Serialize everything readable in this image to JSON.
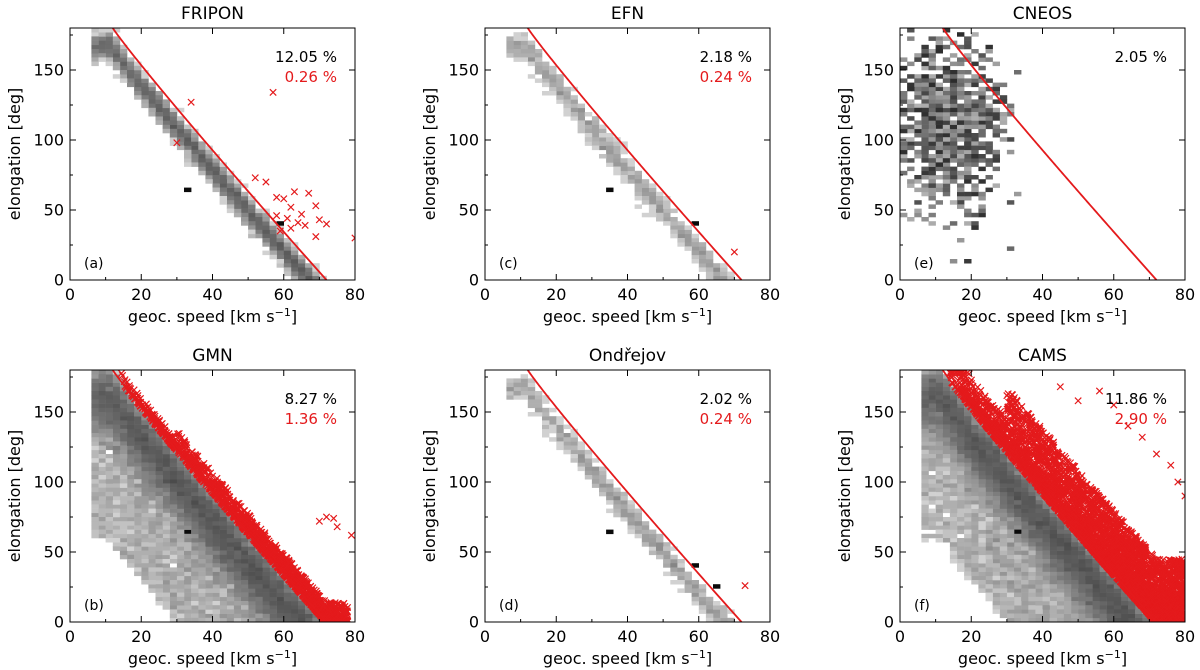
{
  "chart_data": [
    {
      "type": "heatmap",
      "title": "FRIPON",
      "panel_label": "(a)",
      "xlabel": "geoc. speed [km s",
      "xlabel_exp": "−1",
      "xlabel_close": "]",
      "ylabel": "elongation [deg]",
      "xlim": [
        0,
        80
      ],
      "ylim": [
        0,
        180
      ],
      "xticks": [
        0,
        20,
        40,
        60,
        80
      ],
      "yticks": [
        0,
        50,
        100,
        150
      ],
      "percent_total": "12.05 %",
      "percent_outside": "0.26 %",
      "density_profile": {
        "kind": "ridge",
        "spread": "narrow",
        "density": "medium"
      },
      "hotspots": [
        {
          "x": 33,
          "y": 63
        },
        {
          "x": 59,
          "y": 40
        }
      ],
      "outliers": [
        [
          30,
          98
        ],
        [
          34,
          127
        ],
        [
          57,
          134
        ],
        [
          52,
          73
        ],
        [
          55,
          70
        ],
        [
          58,
          59
        ],
        [
          60,
          58
        ],
        [
          62,
          52
        ],
        [
          63,
          63
        ],
        [
          65,
          47
        ],
        [
          67,
          62
        ],
        [
          69,
          53
        ],
        [
          70,
          43
        ],
        [
          72,
          40
        ],
        [
          58,
          46
        ],
        [
          61,
          44
        ],
        [
          64,
          41
        ],
        [
          66,
          39
        ],
        [
          62,
          37
        ],
        [
          59,
          35
        ],
        [
          80,
          30
        ],
        [
          69,
          31
        ]
      ],
      "colors": {
        "density": "#000000",
        "boundary": "#e41a1c",
        "outlier": "#e41a1c"
      }
    },
    {
      "type": "heatmap",
      "title": "GMN",
      "panel_label": "(b)",
      "xlabel": "geoc. speed [km s",
      "xlabel_exp": "−1",
      "xlabel_close": "]",
      "ylabel": "elongation [deg]",
      "xlim": [
        0,
        80
      ],
      "ylim": [
        0,
        180
      ],
      "xticks": [
        0,
        20,
        40,
        60,
        80
      ],
      "yticks": [
        0,
        50,
        100,
        150
      ],
      "percent_total": "8.27 %",
      "percent_outside": "1.36 %",
      "density_profile": {
        "kind": "ridge",
        "spread": "wide",
        "density": "dense"
      },
      "hotspots": [
        {
          "x": 33,
          "y": 63
        },
        {
          "x": 59,
          "y": 40
        }
      ],
      "outlier_region": {
        "band_deg": 14,
        "density": "dense",
        "xmax": 78
      },
      "outliers": [
        [
          72,
          75
        ],
        [
          74,
          74
        ],
        [
          79,
          62
        ],
        [
          70,
          72
        ],
        [
          75,
          68
        ]
      ],
      "colors": {
        "density": "#000000",
        "boundary": "#e41a1c",
        "outlier": "#e41a1c"
      }
    },
    {
      "type": "heatmap",
      "title": "EFN",
      "panel_label": "(c)",
      "xlabel": "geoc. speed [km s",
      "xlabel_exp": "−1",
      "xlabel_close": "]",
      "ylabel": "elongation [deg]",
      "xlim": [
        0,
        80
      ],
      "ylim": [
        0,
        180
      ],
      "xticks": [
        0,
        20,
        40,
        60,
        80
      ],
      "yticks": [
        0,
        50,
        100,
        150
      ],
      "percent_total": "2.18 %",
      "percent_outside": "0.24 %",
      "density_profile": {
        "kind": "ridge",
        "spread": "narrow",
        "density": "sparse"
      },
      "hotspots": [
        {
          "x": 34,
          "y": 63
        },
        {
          "x": 59,
          "y": 41
        }
      ],
      "outliers": [
        [
          70,
          20
        ]
      ],
      "colors": {
        "density": "#000000",
        "boundary": "#e41a1c",
        "outlier": "#e41a1c"
      }
    },
    {
      "type": "heatmap",
      "title": "Ondřejov",
      "panel_label": "(d)",
      "xlabel": "geoc. speed [km s",
      "xlabel_exp": "−1",
      "xlabel_close": "]",
      "ylabel": "elongation [deg]",
      "xlim": [
        0,
        80
      ],
      "ylim": [
        0,
        180
      ],
      "xticks": [
        0,
        20,
        40,
        60,
        80
      ],
      "yticks": [
        0,
        50,
        100,
        150
      ],
      "percent_total": "2.02 %",
      "percent_outside": "0.24 %",
      "density_profile": {
        "kind": "ridge",
        "spread": "narrow",
        "density": "sparse"
      },
      "hotspots": [
        {
          "x": 59,
          "y": 40
        },
        {
          "x": 65,
          "y": 25
        },
        {
          "x": 34,
          "y": 63
        }
      ],
      "outliers": [
        [
          73,
          26
        ]
      ],
      "colors": {
        "density": "#000000",
        "boundary": "#e41a1c",
        "outlier": "#e41a1c"
      }
    },
    {
      "type": "heatmap",
      "title": "CNEOS",
      "panel_label": "(e)",
      "xlabel": "geoc. speed [km s",
      "xlabel_exp": "−1",
      "xlabel_close": "]",
      "ylabel": "elongation [deg]",
      "xlim": [
        0,
        80
      ],
      "ylim": [
        0,
        180
      ],
      "xticks": [
        0,
        20,
        40,
        60,
        80
      ],
      "yticks": [
        0,
        50,
        100,
        150
      ],
      "percent_total": "2.05 %",
      "percent_outside": "",
      "density_profile": {
        "kind": "cluster",
        "cx": 14,
        "cy": 110,
        "sx": 7,
        "sy": 30,
        "density": "sparse"
      },
      "hotspots": [],
      "outliers": [],
      "colors": {
        "density": "#000000",
        "boundary": "#e41a1c",
        "outlier": "#e41a1c"
      }
    },
    {
      "type": "heatmap",
      "title": "CAMS",
      "panel_label": "(f)",
      "xlabel": "geoc. speed [km s",
      "xlabel_exp": "−1",
      "xlabel_close": "]",
      "ylabel": "elongation [deg]",
      "xlim": [
        0,
        80
      ],
      "ylim": [
        0,
        180
      ],
      "xticks": [
        0,
        20,
        40,
        60,
        80
      ],
      "yticks": [
        0,
        50,
        100,
        150
      ],
      "percent_total": "11.86 %",
      "percent_outside": "2.90 %",
      "density_profile": {
        "kind": "ridge",
        "spread": "wide",
        "density": "dense"
      },
      "hotspots": [
        {
          "x": 33,
          "y": 63
        },
        {
          "x": 59,
          "y": 40
        }
      ],
      "outlier_region": {
        "band_deg": 45,
        "density": "very-dense",
        "xmax": 80
      },
      "outliers": [
        [
          45,
          168
        ],
        [
          56,
          165
        ],
        [
          60,
          155
        ],
        [
          50,
          158
        ],
        [
          64,
          140
        ],
        [
          68,
          132
        ],
        [
          72,
          120
        ],
        [
          76,
          112
        ],
        [
          78,
          100
        ],
        [
          80,
          90
        ]
      ],
      "colors": {
        "density": "#000000",
        "boundary": "#e41a1c",
        "outlier": "#e41a1c"
      }
    }
  ]
}
